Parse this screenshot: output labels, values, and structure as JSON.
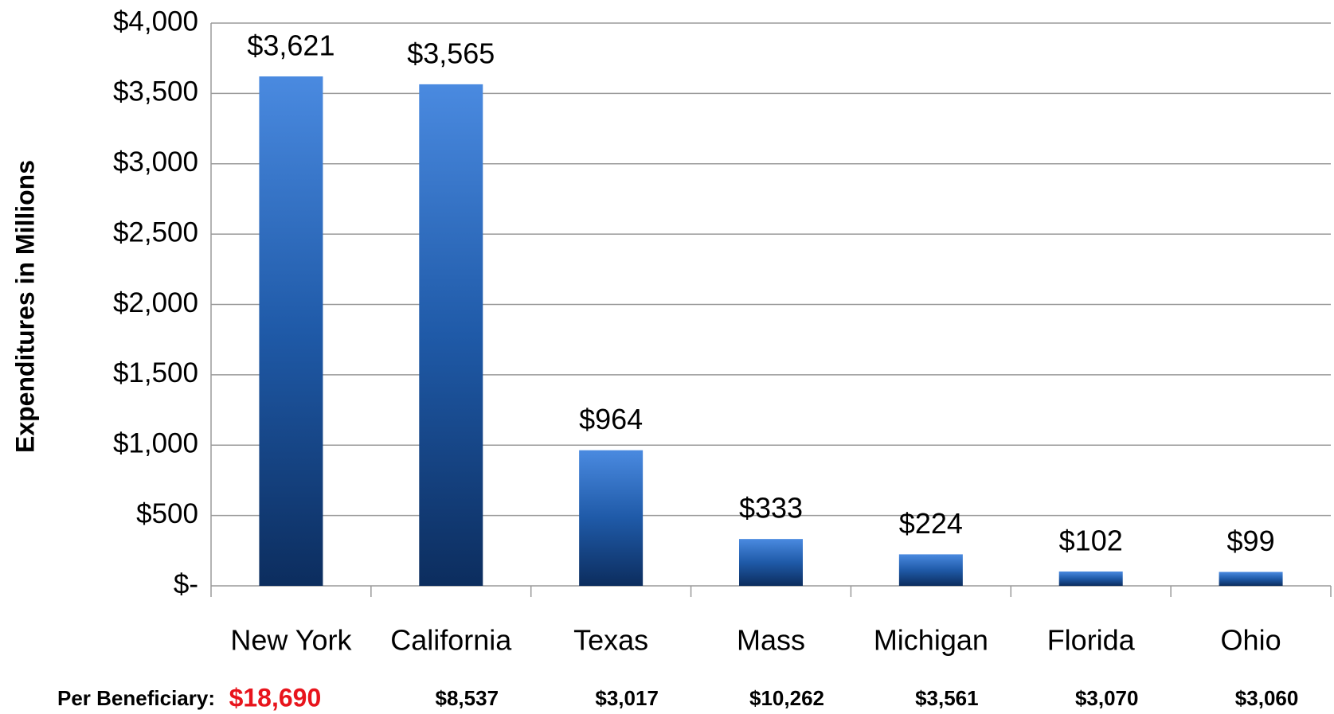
{
  "chart_data": {
    "type": "bar",
    "y_axis_label": "Expenditures in Millions",
    "categories": [
      "New York",
      "California",
      "Texas",
      "Mass",
      "Michigan",
      "Florida",
      "Ohio"
    ],
    "values": [
      3621,
      3565,
      964,
      333,
      224,
      102,
      99
    ],
    "value_labels": [
      "$3,621",
      "$3,565",
      "$964",
      "$333",
      "$224",
      "$102",
      "$99"
    ],
    "color": "#2a62b0",
    "ylim": [
      0,
      4000
    ],
    "yticks": [
      {
        "value": 0,
        "label": "$-"
      },
      {
        "value": 500,
        "label": "$500"
      },
      {
        "value": 1000,
        "label": "$1,000"
      },
      {
        "value": 1500,
        "label": "$1,500"
      },
      {
        "value": 2000,
        "label": "$2,000"
      },
      {
        "value": 2500,
        "label": "$2,500"
      },
      {
        "value": 3000,
        "label": "$3,000"
      },
      {
        "value": 3500,
        "label": "$3,500"
      },
      {
        "value": 4000,
        "label": "$4,000"
      }
    ],
    "grid": true,
    "per_beneficiary": {
      "label": "Per Beneficiary:",
      "values": [
        "$18,690",
        "$8,537",
        "$3,017",
        "$10,262",
        "$3,561",
        "$3,070",
        "$3,060"
      ],
      "highlight_color": "#e8141c"
    }
  }
}
